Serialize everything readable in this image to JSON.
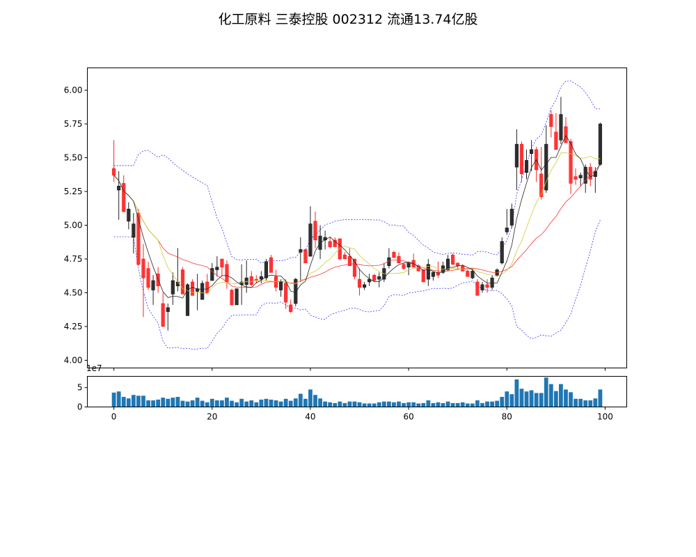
{
  "chart_data": {
    "type": "candlestick",
    "title": "化工原料 三泰控股 002312 流通13.74亿股",
    "colors": {
      "up": "#222222",
      "down": "#ff2020",
      "ma5": "#222222",
      "ma10": "#cccc33",
      "ma20": "#ff3030",
      "bollinger": "#3333ff",
      "volume": "#1f77b4"
    },
    "price_axis": {
      "ylim": [
        3.943,
        6.165
      ],
      "ticks": [
        "4.00",
        "4.25",
        "4.50",
        "4.75",
        "5.00",
        "5.25",
        "5.50",
        "5.75",
        "6.00"
      ]
    },
    "xlim": [
      -5.4,
      104.4
    ],
    "x_ticks": [
      "0",
      "20",
      "40",
      "60",
      "80",
      "100"
    ],
    "overlays": [
      "MA5",
      "MA10",
      "MA20",
      "Bollinger(20,2)"
    ],
    "ohlc": [
      [
        5.42,
        5.63,
        5.32,
        5.37
      ],
      [
        5.26,
        5.4,
        5.04,
        5.29
      ],
      [
        5.31,
        5.37,
        5.1,
        5.1
      ],
      [
        5.03,
        5.17,
        4.97,
        5.12
      ],
      [
        4.91,
        5.09,
        4.79,
        5.01
      ],
      [
        5.09,
        5.12,
        4.7,
        4.71
      ],
      [
        4.75,
        4.86,
        4.32,
        4.61
      ],
      [
        4.68,
        4.73,
        4.52,
        4.54
      ],
      [
        4.52,
        4.63,
        4.41,
        4.59
      ],
      [
        4.64,
        4.69,
        4.5,
        4.55
      ],
      [
        4.42,
        4.5,
        4.25,
        4.25
      ],
      [
        4.36,
        4.42,
        4.22,
        4.39
      ],
      [
        4.49,
        4.65,
        4.41,
        4.59
      ],
      [
        4.55,
        4.83,
        4.51,
        4.58
      ],
      [
        4.67,
        4.69,
        4.49,
        4.49
      ],
      [
        4.33,
        4.57,
        4.33,
        4.56
      ],
      [
        4.58,
        4.6,
        4.48,
        4.48
      ],
      [
        4.51,
        4.64,
        4.37,
        4.53
      ],
      [
        4.45,
        4.59,
        4.45,
        4.57
      ],
      [
        4.58,
        4.64,
        4.49,
        4.5
      ],
      [
        4.59,
        4.72,
        4.59,
        4.68
      ],
      [
        4.67,
        4.77,
        4.62,
        4.69
      ],
      [
        4.75,
        4.75,
        4.62,
        4.69
      ],
      [
        4.71,
        4.74,
        4.53,
        4.58
      ],
      [
        4.52,
        4.53,
        4.41,
        4.41
      ],
      [
        4.41,
        4.53,
        4.41,
        4.53
      ],
      [
        4.56,
        4.71,
        4.41,
        4.58
      ],
      [
        4.56,
        4.74,
        4.5,
        4.61
      ],
      [
        4.62,
        4.66,
        4.55,
        4.56
      ],
      [
        4.6,
        4.63,
        4.57,
        4.59
      ],
      [
        4.6,
        4.66,
        4.57,
        4.62
      ],
      [
        4.61,
        4.75,
        4.59,
        4.73
      ],
      [
        4.76,
        4.78,
        4.65,
        4.65
      ],
      [
        4.62,
        4.67,
        4.51,
        4.54
      ],
      [
        4.52,
        4.6,
        4.47,
        4.58
      ],
      [
        4.57,
        4.6,
        4.38,
        4.43
      ],
      [
        4.41,
        4.45,
        4.35,
        4.36
      ],
      [
        4.42,
        4.61,
        4.4,
        4.6
      ],
      [
        4.8,
        4.91,
        4.58,
        4.82
      ],
      [
        4.82,
        4.82,
        4.72,
        4.72
      ],
      [
        4.77,
        5.14,
        4.77,
        5.01
      ],
      [
        5.03,
        5.1,
        4.83,
        4.89
      ],
      [
        4.82,
        5.0,
        4.75,
        4.92
      ],
      [
        4.89,
        4.96,
        4.82,
        4.91
      ],
      [
        4.88,
        4.91,
        4.83,
        4.84
      ],
      [
        4.89,
        4.91,
        4.84,
        4.84
      ],
      [
        4.9,
        4.9,
        4.74,
        4.75
      ],
      [
        4.78,
        4.8,
        4.75,
        4.75
      ],
      [
        4.77,
        4.83,
        4.7,
        4.7
      ],
      [
        4.75,
        4.75,
        4.6,
        4.62
      ],
      [
        4.6,
        4.68,
        4.48,
        4.54
      ],
      [
        4.54,
        4.58,
        4.52,
        4.56
      ],
      [
        4.58,
        4.64,
        4.55,
        4.6
      ],
      [
        4.63,
        4.64,
        4.58,
        4.59
      ],
      [
        4.6,
        4.65,
        4.54,
        4.62
      ],
      [
        4.6,
        4.72,
        4.58,
        4.68
      ],
      [
        4.7,
        4.83,
        4.68,
        4.76
      ],
      [
        4.8,
        4.81,
        4.76,
        4.76
      ],
      [
        4.77,
        4.8,
        4.72,
        4.72
      ],
      [
        4.71,
        4.72,
        4.67,
        4.68
      ],
      [
        4.69,
        4.72,
        4.63,
        4.72
      ],
      [
        4.74,
        4.79,
        4.69,
        4.69
      ],
      [
        4.7,
        4.71,
        4.66,
        4.66
      ],
      [
        4.67,
        4.67,
        4.58,
        4.58
      ],
      [
        4.6,
        4.75,
        4.55,
        4.71
      ],
      [
        4.62,
        4.66,
        4.59,
        4.65
      ],
      [
        4.65,
        4.73,
        4.61,
        4.63
      ],
      [
        4.65,
        4.73,
        4.64,
        4.7
      ],
      [
        4.67,
        4.78,
        4.66,
        4.75
      ],
      [
        4.78,
        4.79,
        4.71,
        4.71
      ],
      [
        4.72,
        4.72,
        4.67,
        4.7
      ],
      [
        4.7,
        4.71,
        4.66,
        4.66
      ],
      [
        4.66,
        4.67,
        4.62,
        4.62
      ],
      [
        4.61,
        4.68,
        4.6,
        4.66
      ],
      [
        4.58,
        4.6,
        4.48,
        4.48
      ],
      [
        4.52,
        4.58,
        4.5,
        4.56
      ],
      [
        4.56,
        4.6,
        4.5,
        4.54
      ],
      [
        4.54,
        4.63,
        4.52,
        4.61
      ],
      [
        4.63,
        4.68,
        4.62,
        4.67
      ],
      [
        4.72,
        4.91,
        4.71,
        4.88
      ],
      [
        4.95,
        5.12,
        4.93,
        4.98
      ],
      [
        5.0,
        5.16,
        4.98,
        5.12
      ],
      [
        5.43,
        5.71,
        5.26,
        5.6
      ],
      [
        5.6,
        5.62,
        5.32,
        5.38
      ],
      [
        5.39,
        5.56,
        5.34,
        5.48
      ],
      [
        5.53,
        5.63,
        5.4,
        5.56
      ],
      [
        5.56,
        5.58,
        5.32,
        5.41
      ],
      [
        5.38,
        5.58,
        5.19,
        5.21
      ],
      [
        5.26,
        5.74,
        5.24,
        5.6
      ],
      [
        5.82,
        5.85,
        5.65,
        5.73
      ],
      [
        5.69,
        5.83,
        5.56,
        5.56
      ],
      [
        5.63,
        5.95,
        5.6,
        5.82
      ],
      [
        5.73,
        5.8,
        5.61,
        5.61
      ],
      [
        5.62,
        5.64,
        5.23,
        5.31
      ],
      [
        5.36,
        5.42,
        5.3,
        5.34
      ],
      [
        5.35,
        5.39,
        5.29,
        5.37
      ],
      [
        5.31,
        5.45,
        5.24,
        5.43
      ],
      [
        5.43,
        5.46,
        5.29,
        5.34
      ],
      [
        5.36,
        5.43,
        5.24,
        5.4
      ],
      [
        5.45,
        5.76,
        5.44,
        5.75
      ]
    ],
    "volume_axis": {
      "ylim": [
        0,
        7.9
      ],
      "ticks": [
        "0",
        "5"
      ],
      "offset_text": "1e7"
    },
    "volume": [
      3.7,
      4.0,
      2.6,
      2.2,
      3.1,
      2.9,
      2.9,
      1.7,
      1.7,
      1.9,
      2.4,
      2.1,
      2.4,
      2.6,
      1.6,
      1.4,
      1.7,
      2.4,
      1.6,
      1.2,
      2.1,
      1.7,
      1.7,
      2.4,
      1.6,
      1.2,
      2.1,
      1.4,
      1.7,
      1.2,
      1.9,
      2.1,
      1.9,
      1.7,
      1.4,
      2.1,
      1.6,
      2.2,
      3.4,
      2.1,
      4.5,
      3.1,
      2.2,
      1.4,
      1.2,
      1.0,
      1.4,
      1.0,
      1.4,
      1.4,
      1.2,
      0.9,
      0.9,
      0.9,
      1.2,
      1.4,
      1.4,
      1.2,
      1.4,
      1.0,
      1.2,
      1.2,
      0.9,
      1.0,
      1.7,
      1.0,
      1.2,
      1.0,
      1.4,
      1.0,
      1.0,
      1.2,
      0.9,
      0.9,
      1.7,
      1.0,
      1.4,
      1.4,
      1.6,
      2.6,
      4.0,
      3.3,
      7.1,
      4.7,
      4.0,
      4.3,
      3.6,
      3.6,
      7.6,
      5.9,
      4.1,
      5.9,
      4.5,
      3.8,
      2.1,
      2.1,
      1.7,
      1.7,
      2.2,
      4.5
    ]
  }
}
